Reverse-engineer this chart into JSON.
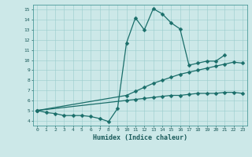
{
  "xlabel": "Humidex (Indice chaleur)",
  "background_color": "#cce8e8",
  "line_color": "#1a6e6a",
  "xlim": [
    -0.5,
    23.5
  ],
  "ylim": [
    3.5,
    15.5
  ],
  "xticks": [
    0,
    1,
    2,
    3,
    4,
    5,
    6,
    7,
    8,
    9,
    10,
    11,
    12,
    13,
    14,
    15,
    16,
    17,
    18,
    19,
    20,
    21,
    22,
    23
  ],
  "yticks": [
    4,
    5,
    6,
    7,
    8,
    9,
    10,
    11,
    12,
    13,
    14,
    15
  ],
  "curve1_x": [
    0,
    1,
    2,
    3,
    4,
    5,
    6,
    7,
    8,
    9,
    10,
    11,
    12,
    13,
    14,
    15,
    16,
    17,
    18,
    19,
    20,
    21
  ],
  "curve1_y": [
    5.0,
    4.8,
    4.7,
    4.5,
    4.5,
    4.5,
    4.4,
    4.2,
    3.9,
    5.2,
    11.7,
    14.2,
    13.0,
    15.1,
    14.6,
    13.7,
    13.1,
    9.5,
    9.7,
    9.9,
    9.9,
    10.5
  ],
  "curve2_x": [
    0,
    10,
    11,
    12,
    13,
    14,
    15,
    16,
    17,
    18,
    19,
    20,
    21,
    22,
    23
  ],
  "curve2_y": [
    5.0,
    6.5,
    6.9,
    7.3,
    7.7,
    8.0,
    8.3,
    8.6,
    8.8,
    9.0,
    9.2,
    9.4,
    9.6,
    9.8,
    9.7
  ],
  "curve3_x": [
    0,
    10,
    11,
    12,
    13,
    14,
    15,
    16,
    17,
    18,
    19,
    20,
    21,
    22,
    23
  ],
  "curve3_y": [
    5.0,
    6.0,
    6.1,
    6.2,
    6.3,
    6.4,
    6.5,
    6.5,
    6.6,
    6.7,
    6.7,
    6.7,
    6.8,
    6.8,
    6.7
  ]
}
